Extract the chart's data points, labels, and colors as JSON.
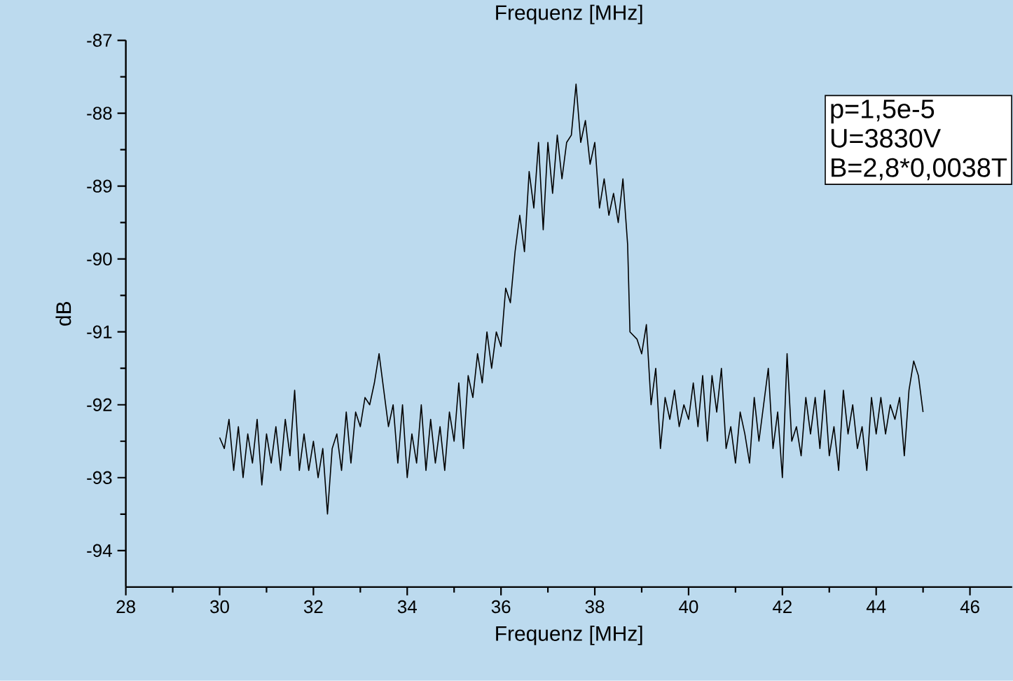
{
  "chart_data": {
    "type": "line",
    "title": "Frequenz [MHz]",
    "xlabel": "Frequenz [MHz]",
    "ylabel": "dB",
    "annotations": [
      "p=1,5e-5",
      "U=3830V",
      "B=2,8*0,0038T"
    ],
    "xlim": [
      28,
      46.9
    ],
    "xticks": [
      28,
      30,
      32,
      34,
      36,
      38,
      40,
      42,
      44,
      46
    ],
    "ylim": [
      -94.5,
      -87
    ],
    "yticks": [
      -94,
      -93,
      -92,
      -91,
      -90,
      -89,
      -88,
      -87
    ],
    "grid": false,
    "marker": "none",
    "line_style": "solid",
    "x": [
      30.0,
      30.1,
      30.2,
      30.3,
      30.4,
      30.5,
      30.6,
      30.7,
      30.8,
      30.9,
      31.0,
      31.1,
      31.2,
      31.3,
      31.4,
      31.5,
      31.6,
      31.7,
      31.8,
      31.9,
      32.0,
      32.1,
      32.2,
      32.3,
      32.4,
      32.5,
      32.6,
      32.7,
      32.8,
      32.9,
      33.0,
      33.1,
      33.2,
      33.3,
      33.4,
      33.5,
      33.6,
      33.7,
      33.8,
      33.9,
      34.0,
      34.1,
      34.2,
      34.3,
      34.4,
      34.5,
      34.6,
      34.7,
      34.8,
      34.9,
      35.0,
      35.1,
      35.2,
      35.3,
      35.4,
      35.5,
      35.6,
      35.7,
      35.8,
      35.9,
      36.0,
      36.1,
      36.2,
      36.3,
      36.4,
      36.5,
      36.6,
      36.7,
      36.8,
      36.9,
      37.0,
      37.1,
      37.2,
      37.3,
      37.4,
      37.5,
      37.6,
      37.7,
      37.8,
      37.9,
      38.0,
      38.1,
      38.2,
      38.3,
      38.4,
      38.5,
      38.6,
      38.7,
      38.75,
      38.9,
      39.0,
      39.1,
      39.2,
      39.3,
      39.4,
      39.5,
      39.6,
      39.7,
      39.8,
      39.9,
      40.0,
      40.1,
      40.2,
      40.3,
      40.4,
      40.5,
      40.6,
      40.7,
      40.8,
      40.9,
      41.0,
      41.1,
      41.2,
      41.3,
      41.4,
      41.5,
      41.6,
      41.7,
      41.8,
      41.9,
      42.0,
      42.1,
      42.2,
      42.3,
      42.4,
      42.5,
      42.6,
      42.7,
      42.8,
      42.9,
      43.0,
      43.1,
      43.2,
      43.3,
      43.4,
      43.5,
      43.6,
      43.7,
      43.8,
      43.9,
      44.0,
      44.1,
      44.2,
      44.3,
      44.4,
      44.5,
      44.6,
      44.7,
      44.8,
      44.9,
      45.0
    ],
    "series": [
      {
        "color": "#000000",
        "values": [
          -92.45,
          -92.6,
          -92.2,
          -92.9,
          -92.3,
          -93.0,
          -92.4,
          -92.8,
          -92.2,
          -93.1,
          -92.4,
          -92.8,
          -92.3,
          -92.9,
          -92.2,
          -92.7,
          -91.8,
          -92.9,
          -92.4,
          -92.9,
          -92.5,
          -93.0,
          -92.6,
          -93.5,
          -92.6,
          -92.4,
          -92.9,
          -92.1,
          -92.8,
          -92.1,
          -92.3,
          -91.9,
          -92.0,
          -91.7,
          -91.3,
          -91.8,
          -92.3,
          -92.0,
          -92.8,
          -92.0,
          -93.0,
          -92.4,
          -92.8,
          -92.0,
          -92.9,
          -92.2,
          -92.8,
          -92.3,
          -92.9,
          -92.1,
          -92.5,
          -91.7,
          -92.6,
          -91.6,
          -91.9,
          -91.3,
          -91.7,
          -91.0,
          -91.5,
          -91.0,
          -91.2,
          -90.4,
          -90.6,
          -89.9,
          -89.4,
          -89.9,
          -88.8,
          -89.3,
          -88.4,
          -89.6,
          -88.4,
          -89.1,
          -88.3,
          -88.9,
          -88.4,
          -88.3,
          -87.6,
          -88.4,
          -88.1,
          -88.7,
          -88.4,
          -89.3,
          -88.9,
          -89.4,
          -89.1,
          -89.5,
          -88.9,
          -89.8,
          -91.0,
          -91.1,
          -91.3,
          -90.9,
          -92.0,
          -91.5,
          -92.6,
          -91.9,
          -92.2,
          -91.8,
          -92.3,
          -92.0,
          -92.2,
          -91.7,
          -92.3,
          -91.6,
          -92.5,
          -91.6,
          -92.1,
          -91.5,
          -92.6,
          -92.3,
          -92.8,
          -92.1,
          -92.4,
          -92.8,
          -91.9,
          -92.5,
          -92.0,
          -91.5,
          -92.6,
          -92.1,
          -93.0,
          -91.3,
          -92.5,
          -92.3,
          -92.7,
          -91.9,
          -92.4,
          -91.9,
          -92.6,
          -91.8,
          -92.7,
          -92.3,
          -92.9,
          -91.8,
          -92.4,
          -92.0,
          -92.6,
          -92.3,
          -92.9,
          -91.9,
          -92.4,
          -91.9,
          -92.4,
          -92.0,
          -92.2,
          -91.9,
          -92.7,
          -91.8,
          -91.4,
          -91.6,
          -92.1
        ]
      }
    ]
  }
}
